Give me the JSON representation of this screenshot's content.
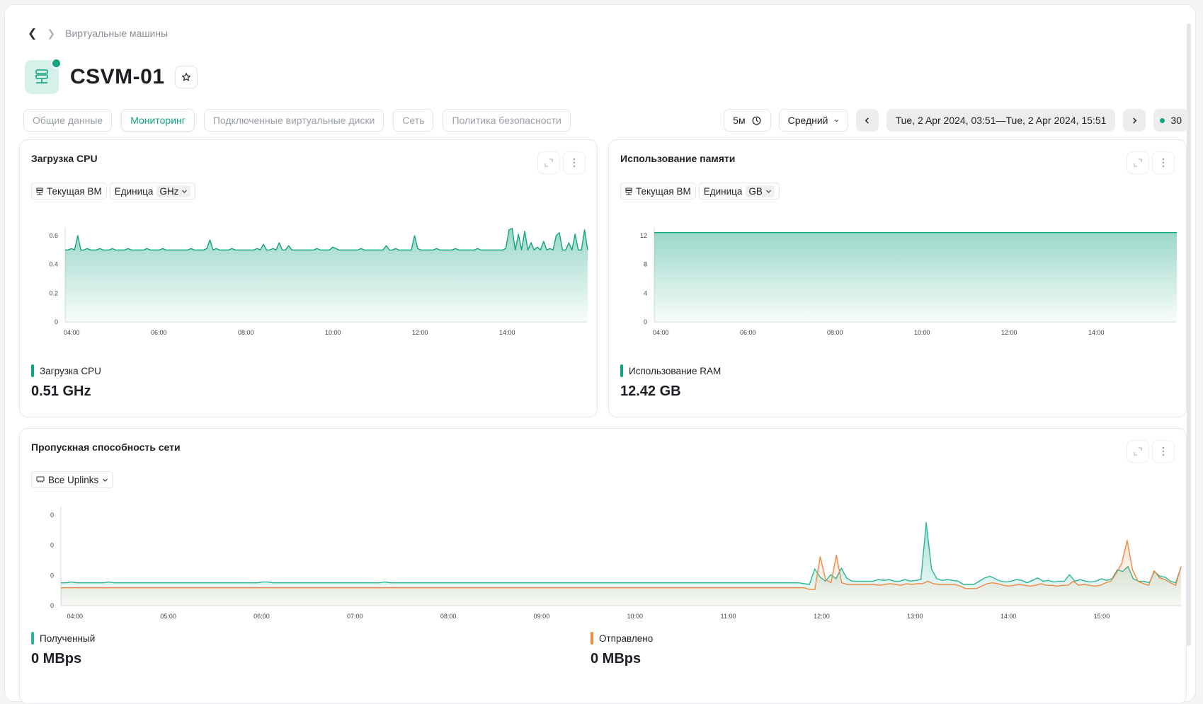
{
  "breadcrumb": {
    "item": "Виртуальные машины"
  },
  "vm": {
    "name": "CSVM-01",
    "status_color": "#12a37f"
  },
  "tabs": [
    {
      "label": "Общие данные",
      "active": false
    },
    {
      "label": "Мониторинг",
      "active": true
    },
    {
      "label": "Подключенные виртуальные диски",
      "active": false
    },
    {
      "label": "Сеть",
      "active": false
    },
    {
      "label": "Политика безопасности",
      "active": false
    }
  ],
  "controls": {
    "interval": "5м",
    "aggregation": "Средний",
    "range": "Tue, 2 Apr 2024, 03:51—Tue, 2 Apr 2024, 15:51",
    "refresh": "30"
  },
  "colors": {
    "accent": "#12a37f",
    "received": "#2bb597",
    "sent": "#ef8a44"
  },
  "cpu": {
    "title": "Загрузка CPU",
    "scope": "Текущая ВМ",
    "unit_label": "Единица",
    "unit": "GHz",
    "legend": "Загрузка CPU",
    "value": "0.51 GHz"
  },
  "mem": {
    "title": "Использование памяти",
    "scope": "Текущая ВМ",
    "unit_label": "Единица",
    "unit": "GB",
    "legend": "Использование RAM",
    "value": "12.42 GB"
  },
  "net": {
    "title": "Пропускная способность сети",
    "filter": "Все Uplinks",
    "legend_received": "Полученный",
    "legend_sent": "Отправлено",
    "value_received": "0 MBps",
    "value_sent": "0 MBps"
  },
  "chart_data": [
    {
      "id": "cpu",
      "type": "area",
      "x_range": [
        "03:51",
        "15:51"
      ],
      "x_ticks": [
        "04:00",
        "06:00",
        "08:00",
        "10:00",
        "12:00",
        "14:00"
      ],
      "y_ticks": [
        "0",
        "0.2",
        "0.4",
        "0.6"
      ],
      "ylim": [
        0,
        0.7
      ],
      "series": [
        {
          "name": "Загрузка CPU",
          "values": [
            0.5,
            0.5,
            0.51,
            0.5,
            0.6,
            0.5,
            0.5,
            0.51,
            0.5,
            0.5,
            0.5,
            0.51,
            0.5,
            0.5,
            0.5,
            0.51,
            0.5,
            0.5,
            0.5,
            0.5,
            0.51,
            0.5,
            0.5,
            0.5,
            0.5,
            0.5,
            0.51,
            0.5,
            0.5,
            0.5,
            0.5,
            0.51,
            0.5,
            0.5,
            0.5,
            0.5,
            0.5,
            0.5,
            0.5,
            0.5,
            0.51,
            0.5,
            0.5,
            0.5,
            0.5,
            0.51,
            0.57,
            0.5,
            0.51,
            0.5,
            0.5,
            0.5,
            0.5,
            0.51,
            0.5,
            0.5,
            0.5,
            0.5,
            0.5,
            0.5,
            0.5,
            0.51,
            0.5,
            0.54,
            0.5,
            0.5,
            0.51,
            0.5,
            0.55,
            0.5,
            0.5,
            0.53,
            0.5,
            0.5,
            0.5,
            0.5,
            0.5,
            0.5,
            0.5,
            0.5,
            0.51,
            0.5,
            0.5,
            0.5,
            0.5,
            0.52,
            0.51,
            0.5,
            0.5,
            0.5,
            0.5,
            0.5,
            0.5,
            0.5,
            0.51,
            0.5,
            0.5,
            0.5,
            0.5,
            0.5,
            0.5,
            0.5,
            0.53,
            0.5,
            0.5,
            0.51,
            0.5,
            0.5,
            0.5,
            0.5,
            0.5,
            0.6,
            0.51,
            0.5,
            0.5,
            0.5,
            0.5,
            0.5,
            0.51,
            0.5,
            0.5,
            0.5,
            0.5,
            0.5,
            0.51,
            0.5,
            0.5,
            0.5,
            0.5,
            0.5,
            0.5,
            0.51,
            0.5,
            0.5,
            0.5,
            0.5,
            0.5,
            0.5,
            0.5,
            0.5,
            0.51,
            0.64,
            0.65,
            0.5,
            0.61,
            0.5,
            0.63,
            0.5,
            0.55,
            0.5,
            0.52,
            0.5,
            0.56,
            0.5,
            0.51,
            0.5,
            0.6,
            0.62,
            0.5,
            0.5,
            0.55,
            0.5,
            0.61,
            0.5,
            0.5,
            0.64,
            0.5
          ]
        }
      ]
    },
    {
      "id": "mem",
      "type": "area",
      "x_range": [
        "03:51",
        "15:51"
      ],
      "x_ticks": [
        "04:00",
        "06:00",
        "08:00",
        "10:00",
        "12:00",
        "14:00"
      ],
      "y_ticks": [
        "0",
        "4",
        "8",
        "12"
      ],
      "ylim": [
        0,
        14
      ],
      "series": [
        {
          "name": "Использование RAM",
          "constant": 12.42
        }
      ]
    },
    {
      "id": "net",
      "type": "area",
      "x_range": [
        "03:51",
        "15:51"
      ],
      "x_ticks": [
        "04:00",
        "05:00",
        "06:00",
        "07:00",
        "08:00",
        "09:00",
        "10:00",
        "11:00",
        "12:00",
        "13:00",
        "14:00",
        "15:00"
      ],
      "y_ticks": [
        "0",
        "0",
        "0",
        "0"
      ],
      "ylim": [
        0,
        1
      ],
      "series": [
        {
          "name": "Полученный",
          "values": [
            0.28,
            0.28,
            0.29,
            0.28,
            0.28,
            0.28,
            0.28,
            0.28,
            0.28,
            0.29,
            0.28,
            0.28,
            0.28,
            0.28,
            0.28,
            0.28,
            0.28,
            0.28,
            0.28,
            0.28,
            0.28,
            0.28,
            0.28,
            0.28,
            0.28,
            0.28,
            0.28,
            0.28,
            0.28,
            0.28,
            0.28,
            0.28,
            0.28,
            0.28,
            0.28,
            0.28,
            0.28,
            0.28,
            0.29,
            0.29,
            0.28,
            0.28,
            0.28,
            0.28,
            0.28,
            0.28,
            0.28,
            0.28,
            0.28,
            0.28,
            0.28,
            0.28,
            0.28,
            0.28,
            0.28,
            0.28,
            0.28,
            0.28,
            0.28,
            0.28,
            0.28,
            0.29,
            0.28,
            0.28,
            0.28,
            0.28,
            0.28,
            0.28,
            0.28,
            0.28,
            0.28,
            0.28,
            0.28,
            0.28,
            0.28,
            0.28,
            0.28,
            0.28,
            0.28,
            0.28,
            0.28,
            0.28,
            0.28,
            0.28,
            0.28,
            0.28,
            0.28,
            0.28,
            0.28,
            0.28,
            0.28,
            0.28,
            0.28,
            0.28,
            0.28,
            0.28,
            0.28,
            0.28,
            0.28,
            0.28,
            0.28,
            0.28,
            0.28,
            0.28,
            0.28,
            0.28,
            0.28,
            0.28,
            0.28,
            0.28,
            0.28,
            0.28,
            0.28,
            0.28,
            0.28,
            0.28,
            0.28,
            0.28,
            0.28,
            0.28,
            0.28,
            0.28,
            0.28,
            0.28,
            0.28,
            0.28,
            0.28,
            0.28,
            0.28,
            0.28,
            0.28,
            0.28,
            0.28,
            0.28,
            0.28,
            0.28,
            0.28,
            0.28,
            0.28,
            0.28,
            0.27,
            0.26,
            0.45,
            0.35,
            0.3,
            0.38,
            0.33,
            0.46,
            0.34,
            0.3,
            0.3,
            0.3,
            0.3,
            0.3,
            0.32,
            0.31,
            0.32,
            0.3,
            0.3,
            0.32,
            0.3,
            0.31,
            0.32,
            1.02,
            0.45,
            0.33,
            0.31,
            0.32,
            0.31,
            0.3,
            0.26,
            0.26,
            0.26,
            0.3,
            0.34,
            0.36,
            0.33,
            0.3,
            0.29,
            0.3,
            0.32,
            0.31,
            0.28,
            0.31,
            0.34,
            0.3,
            0.31,
            0.29,
            0.3,
            0.3,
            0.38,
            0.3,
            0.32,
            0.3,
            0.29,
            0.3,
            0.33,
            0.31,
            0.33,
            0.44,
            0.42,
            0.48,
            0.33,
            0.3,
            0.3,
            0.28,
            0.42,
            0.36,
            0.35,
            0.3,
            0.28,
            0.48
          ]
        },
        {
          "name": "Отправлено",
          "values": [
            0.22,
            0.22,
            0.22,
            0.22,
            0.22,
            0.22,
            0.22,
            0.22,
            0.22,
            0.22,
            0.22,
            0.22,
            0.22,
            0.22,
            0.22,
            0.22,
            0.22,
            0.22,
            0.22,
            0.22,
            0.22,
            0.22,
            0.22,
            0.22,
            0.22,
            0.22,
            0.22,
            0.22,
            0.22,
            0.22,
            0.22,
            0.22,
            0.22,
            0.22,
            0.22,
            0.22,
            0.22,
            0.22,
            0.22,
            0.22,
            0.22,
            0.22,
            0.22,
            0.22,
            0.22,
            0.22,
            0.22,
            0.22,
            0.22,
            0.22,
            0.22,
            0.22,
            0.22,
            0.22,
            0.22,
            0.22,
            0.22,
            0.22,
            0.22,
            0.22,
            0.22,
            0.22,
            0.22,
            0.22,
            0.22,
            0.22,
            0.22,
            0.22,
            0.22,
            0.22,
            0.22,
            0.22,
            0.22,
            0.22,
            0.22,
            0.22,
            0.22,
            0.22,
            0.22,
            0.22,
            0.22,
            0.22,
            0.22,
            0.22,
            0.22,
            0.22,
            0.22,
            0.22,
            0.22,
            0.22,
            0.22,
            0.22,
            0.22,
            0.22,
            0.22,
            0.22,
            0.22,
            0.22,
            0.22,
            0.22,
            0.22,
            0.22,
            0.22,
            0.22,
            0.22,
            0.22,
            0.22,
            0.22,
            0.22,
            0.22,
            0.22,
            0.22,
            0.22,
            0.22,
            0.22,
            0.22,
            0.22,
            0.22,
            0.22,
            0.22,
            0.22,
            0.22,
            0.22,
            0.22,
            0.22,
            0.22,
            0.22,
            0.22,
            0.22,
            0.22,
            0.22,
            0.22,
            0.22,
            0.22,
            0.22,
            0.22,
            0.22,
            0.22,
            0.22,
            0.2,
            0.2,
            0.6,
            0.32,
            0.28,
            0.62,
            0.28,
            0.26,
            0.26,
            0.26,
            0.26,
            0.26,
            0.26,
            0.25,
            0.26,
            0.27,
            0.26,
            0.25,
            0.27,
            0.26,
            0.27,
            0.27,
            0.3,
            0.27,
            0.26,
            0.26,
            0.26,
            0.26,
            0.24,
            0.21,
            0.21,
            0.21,
            0.24,
            0.27,
            0.28,
            0.27,
            0.25,
            0.24,
            0.25,
            0.26,
            0.25,
            0.24,
            0.25,
            0.27,
            0.25,
            0.25,
            0.24,
            0.25,
            0.25,
            0.3,
            0.25,
            0.26,
            0.25,
            0.24,
            0.25,
            0.28,
            0.3,
            0.4,
            0.52,
            0.8,
            0.44,
            0.3,
            0.27,
            0.25,
            0.43,
            0.34,
            0.32,
            0.28,
            0.25,
            0.48
          ]
        }
      ]
    }
  ]
}
